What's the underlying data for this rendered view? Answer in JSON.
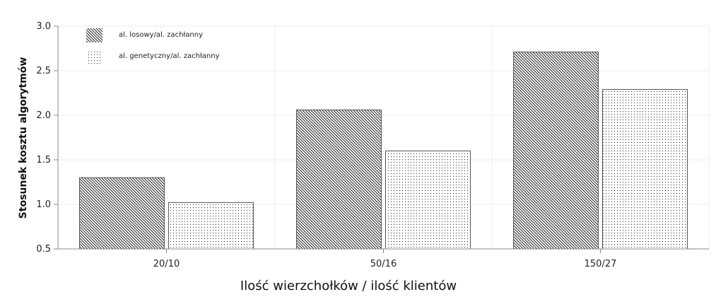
{
  "chart_data": {
    "type": "bar",
    "categories": [
      "20/10",
      "50/16",
      "150/27"
    ],
    "series": [
      {
        "name": "al. losowy/al. zachłanny",
        "values": [
          1.3,
          2.06,
          2.71
        ],
        "pattern": "diagonal-hatch"
      },
      {
        "name": "al. genetyczny/al. zachłanny",
        "values": [
          1.02,
          1.6,
          2.29
        ],
        "pattern": "dots"
      }
    ],
    "title": "",
    "xlabel": "Ilość wierzchołków / ilość klientów",
    "ylabel": "Stosunek kosztu algorytmów",
    "ylim": [
      0.5,
      3.0
    ],
    "yticks": [
      "0.5",
      "1.0",
      "1.5",
      "2.0",
      "2.5",
      "3.0"
    ],
    "grid": true,
    "legend_position": "top-left",
    "colors": {
      "bar_stroke": "#555555",
      "pattern_ink": "#222222",
      "grid": "#eeeeee",
      "axis": "#888888"
    }
  }
}
